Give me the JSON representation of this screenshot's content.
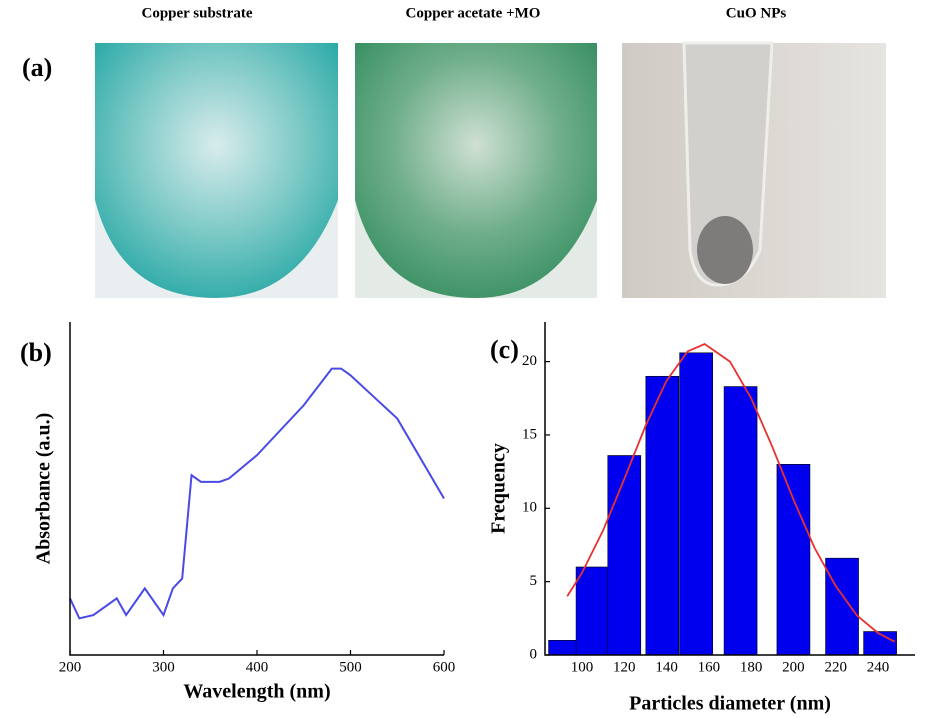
{
  "panel_a": {
    "label": "(a)",
    "photos": [
      "Copper substrate",
      "Copper acetate +MO",
      "CuO NPs"
    ]
  },
  "chart_data": [
    {
      "type": "line",
      "label": "(b)",
      "x_label": "Wavelength (nm)",
      "y_label": "Absorbance (a.u.)",
      "x": [
        200,
        210,
        225,
        250,
        260,
        280,
        300,
        310,
        320,
        330,
        340,
        360,
        370,
        400,
        450,
        480,
        490,
        500,
        550,
        600
      ],
      "values": [
        0.17,
        0.11,
        0.12,
        0.17,
        0.12,
        0.2,
        0.12,
        0.2,
        0.23,
        0.54,
        0.52,
        0.52,
        0.53,
        0.6,
        0.75,
        0.86,
        0.86,
        0.84,
        0.71,
        0.47
      ],
      "color": "#4a4ae6",
      "xlim": [
        200,
        600
      ],
      "xticks": [
        200,
        300,
        400,
        500,
        600
      ],
      "ylim": [
        0,
        1
      ]
    },
    {
      "type": "bar",
      "label": "(c)",
      "x_label": "Particles diameter (nm)",
      "y_label": "Frequency",
      "x": [
        92,
        105,
        120,
        138,
        154,
        175,
        200,
        223,
        241
      ],
      "values": [
        1.0,
        6.0,
        13.6,
        19.0,
        20.6,
        18.3,
        13.0,
        6.6,
        1.6
      ],
      "color": "#0000ee",
      "fit": {
        "color": "#e83030",
        "x": [
          93,
          100,
          110,
          120,
          130,
          140,
          150,
          158,
          170,
          180,
          190,
          200,
          210,
          220,
          230,
          240,
          248
        ],
        "values": [
          4.0,
          5.6,
          8.5,
          12.0,
          15.6,
          18.7,
          20.7,
          21.2,
          20.0,
          17.5,
          14.2,
          10.6,
          7.3,
          4.7,
          2.7,
          1.5,
          0.9
        ]
      },
      "xlim": [
        82.5,
        257.5
      ],
      "xticks": [
        100,
        120,
        140,
        160,
        180,
        200,
        220,
        240
      ],
      "ylim": [
        0,
        22.7
      ],
      "yticks": [
        0,
        5,
        10,
        15,
        20
      ]
    }
  ]
}
